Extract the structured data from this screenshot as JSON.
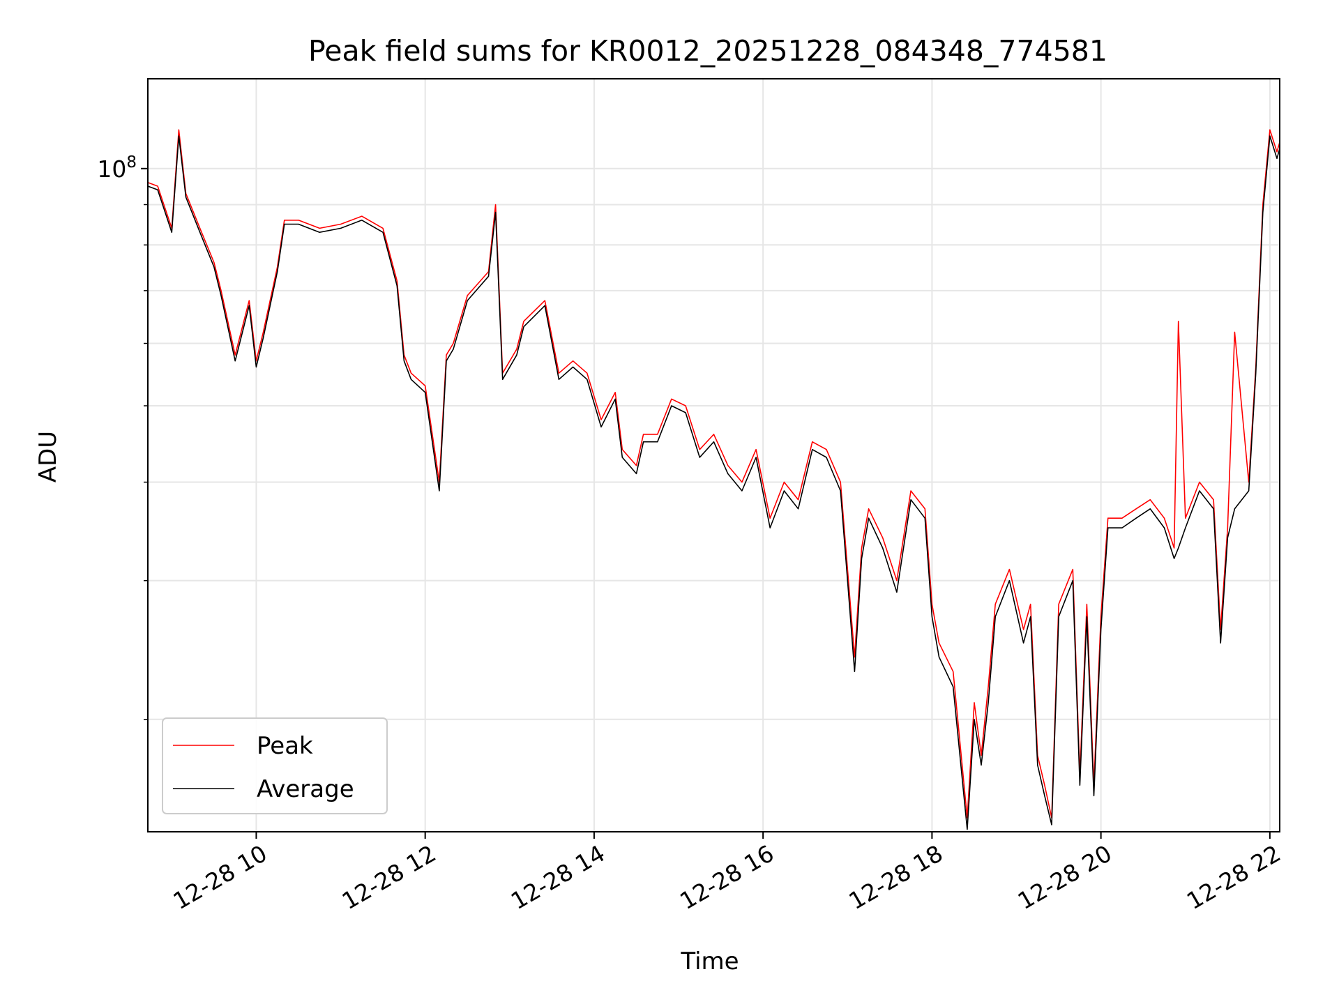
{
  "chart_data": {
    "type": "line",
    "title": "Peak field sums for KR0012_20251228_084348_774581",
    "xlabel": "Time",
    "ylabel": "ADU",
    "y_scale": "log",
    "ylim": [
      14400000,
      130000000
    ],
    "xlim": [
      "2025-12-28 08:43",
      "2025-12-28 22:07"
    ],
    "x_ticks": [
      {
        "value": "2025-12-28 10:00",
        "label": "12-28 10"
      },
      {
        "value": "2025-12-28 12:00",
        "label": "12-28 12"
      },
      {
        "value": "2025-12-28 14:00",
        "label": "12-28 14"
      },
      {
        "value": "2025-12-28 16:00",
        "label": "12-28 16"
      },
      {
        "value": "2025-12-28 18:00",
        "label": "12-28 18"
      },
      {
        "value": "2025-12-28 20:00",
        "label": "12-28 20"
      },
      {
        "value": "2025-12-28 22:00",
        "label": "12-28 22"
      }
    ],
    "y_ticks_major": [
      {
        "value": 100000000,
        "label": "10^8"
      }
    ],
    "y_ticks_minor": [
      20000000,
      30000000,
      40000000,
      50000000,
      60000000,
      70000000,
      80000000,
      90000000
    ],
    "grid": true,
    "legend_position": "lower-left",
    "colors": {
      "Peak": "#ff0000",
      "Average": "#000000"
    },
    "x": [
      "2025-12-28 08:43",
      "2025-12-28 08:50",
      "2025-12-28 09:00",
      "2025-12-28 09:05",
      "2025-12-28 09:10",
      "2025-12-28 09:20",
      "2025-12-28 09:30",
      "2025-12-28 09:35",
      "2025-12-28 09:45",
      "2025-12-28 09:55",
      "2025-12-28 10:00",
      "2025-12-28 10:05",
      "2025-12-28 10:15",
      "2025-12-28 10:20",
      "2025-12-28 10:30",
      "2025-12-28 10:45",
      "2025-12-28 11:00",
      "2025-12-28 11:15",
      "2025-12-28 11:30",
      "2025-12-28 11:40",
      "2025-12-28 11:45",
      "2025-12-28 11:50",
      "2025-12-28 12:00",
      "2025-12-28 12:10",
      "2025-12-28 12:15",
      "2025-12-28 12:20",
      "2025-12-28 12:30",
      "2025-12-28 12:45",
      "2025-12-28 12:50",
      "2025-12-28 12:55",
      "2025-12-28 13:05",
      "2025-12-28 13:10",
      "2025-12-28 13:25",
      "2025-12-28 13:35",
      "2025-12-28 13:45",
      "2025-12-28 13:55",
      "2025-12-28 14:05",
      "2025-12-28 14:15",
      "2025-12-28 14:20",
      "2025-12-28 14:30",
      "2025-12-28 14:35",
      "2025-12-28 14:45",
      "2025-12-28 14:55",
      "2025-12-28 15:05",
      "2025-12-28 15:15",
      "2025-12-28 15:25",
      "2025-12-28 15:35",
      "2025-12-28 15:45",
      "2025-12-28 15:55",
      "2025-12-28 16:05",
      "2025-12-28 16:15",
      "2025-12-28 16:25",
      "2025-12-28 16:35",
      "2025-12-28 16:45",
      "2025-12-28 16:55",
      "2025-12-28 17:00",
      "2025-12-28 17:05",
      "2025-12-28 17:10",
      "2025-12-28 17:15",
      "2025-12-28 17:25",
      "2025-12-28 17:35",
      "2025-12-28 17:45",
      "2025-12-28 17:55",
      "2025-12-28 18:00",
      "2025-12-28 18:05",
      "2025-12-28 18:15",
      "2025-12-28 18:25",
      "2025-12-28 18:30",
      "2025-12-28 18:35",
      "2025-12-28 18:40",
      "2025-12-28 18:45",
      "2025-12-28 18:55",
      "2025-12-28 19:05",
      "2025-12-28 19:10",
      "2025-12-28 19:15",
      "2025-12-28 19:20",
      "2025-12-28 19:25",
      "2025-12-28 19:30",
      "2025-12-28 19:40",
      "2025-12-28 19:45",
      "2025-12-28 19:50",
      "2025-12-28 19:55",
      "2025-12-28 20:00",
      "2025-12-28 20:05",
      "2025-12-28 20:15",
      "2025-12-28 20:25",
      "2025-12-28 20:35",
      "2025-12-28 20:45",
      "2025-12-28 20:52",
      "2025-12-28 20:55",
      "2025-12-28 21:00",
      "2025-12-28 21:10",
      "2025-12-28 21:20",
      "2025-12-28 21:25",
      "2025-12-28 21:30",
      "2025-12-28 21:35",
      "2025-12-28 21:45",
      "2025-12-28 21:50",
      "2025-12-28 21:55",
      "2025-12-28 22:00",
      "2025-12-28 22:05",
      "2025-12-28 22:07"
    ],
    "series": [
      {
        "name": "Peak",
        "values": [
          96000000,
          95000000,
          84000000,
          112000000,
          93000000,
          84000000,
          76000000,
          70000000,
          58000000,
          68000000,
          57000000,
          62000000,
          75000000,
          86000000,
          86000000,
          84000000,
          85000000,
          87000000,
          84000000,
          72000000,
          58000000,
          55000000,
          53000000,
          40000000,
          58000000,
          60000000,
          69000000,
          74000000,
          90000000,
          55000000,
          59000000,
          64000000,
          68000000,
          55000000,
          57000000,
          55000000,
          48000000,
          52000000,
          44000000,
          42000000,
          46000000,
          46000000,
          51000000,
          50000000,
          44000000,
          46000000,
          42000000,
          40000000,
          44000000,
          36000000,
          40000000,
          38000000,
          45000000,
          44000000,
          40000000,
          31000000,
          24000000,
          33000000,
          37000000,
          34000000,
          30000000,
          39000000,
          37000000,
          28000000,
          25000000,
          23000000,
          15000000,
          21000000,
          18000000,
          22000000,
          28000000,
          31000000,
          26000000,
          28000000,
          18000000,
          16500000,
          15000000,
          28000000,
          31000000,
          17000000,
          28000000,
          16500000,
          27000000,
          36000000,
          36000000,
          37000000,
          38000000,
          36000000,
          33000000,
          64000000,
          36000000,
          40000000,
          38000000,
          26000000,
          35000000,
          62000000,
          40000000,
          56000000,
          90000000,
          112000000,
          105000000,
          108000000
        ]
      },
      {
        "name": "Average",
        "values": [
          95000000,
          94000000,
          83000000,
          110000000,
          92000000,
          83000000,
          75000000,
          69000000,
          57000000,
          67000000,
          56000000,
          61000000,
          74000000,
          85000000,
          85000000,
          83000000,
          84000000,
          86000000,
          83000000,
          71000000,
          57000000,
          54000000,
          52000000,
          39000000,
          57000000,
          59000000,
          68000000,
          73000000,
          88000000,
          54000000,
          58000000,
          63000000,
          67000000,
          54000000,
          56000000,
          54000000,
          47000000,
          51000000,
          43000000,
          41000000,
          45000000,
          45000000,
          50000000,
          49000000,
          43000000,
          45000000,
          41000000,
          39000000,
          43000000,
          35000000,
          39000000,
          37000000,
          44000000,
          43000000,
          39000000,
          30000000,
          23000000,
          32000000,
          36000000,
          33000000,
          29000000,
          38000000,
          36000000,
          27000000,
          24000000,
          22000000,
          14500000,
          20000000,
          17500000,
          21000000,
          27000000,
          30000000,
          25000000,
          27000000,
          17500000,
          16000000,
          14700000,
          27000000,
          30000000,
          16500000,
          27000000,
          16000000,
          26000000,
          35000000,
          35000000,
          36000000,
          37000000,
          35000000,
          32000000,
          33000000,
          35000000,
          39000000,
          37000000,
          25000000,
          34000000,
          37000000,
          39000000,
          55000000,
          88000000,
          110000000,
          103000000,
          106000000
        ]
      }
    ]
  }
}
